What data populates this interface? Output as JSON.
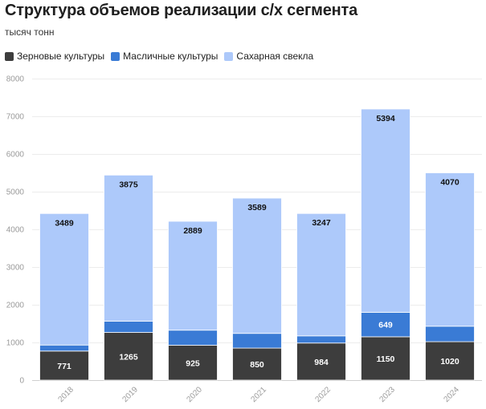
{
  "chart_data": {
    "type": "bar",
    "stacked": true,
    "title": "Структура объемов реализации с/х сегмента",
    "subtitle": "тысяч тонн",
    "categories": [
      "2018",
      "2019",
      "2020",
      "2021",
      "2022",
      "2023",
      "2024"
    ],
    "series": [
      {
        "name": "Зерновые культуры",
        "color": "#3d3d3d",
        "label_color": "#ffffff",
        "values": [
          771,
          1265,
          925,
          850,
          984,
          1150,
          1020
        ],
        "labels": [
          "771",
          "1265",
          "925",
          "850",
          "984",
          "1150",
          "1020"
        ]
      },
      {
        "name": "Масличные культуры",
        "color": "#3a7bd5",
        "label_color": "#ffffff",
        "values": [
          160,
          300,
          400,
          390,
          190,
          649,
          410
        ],
        "labels": [
          "",
          "",
          "",
          "",
          "",
          "649",
          ""
        ]
      },
      {
        "name": "Сахарная свекла",
        "color": "#adc9fa",
        "label_color": "#111111",
        "values": [
          3489,
          3875,
          2889,
          3589,
          3247,
          5394,
          4070
        ],
        "labels": [
          "3489",
          "3875",
          "2889",
          "3589",
          "3247",
          "5394",
          "4070"
        ]
      }
    ],
    "ylim": [
      0,
      8000
    ],
    "yticks": [
      0,
      1000,
      2000,
      3000,
      4000,
      5000,
      6000,
      7000,
      8000
    ],
    "grid": true,
    "legend_position": "top-left"
  }
}
